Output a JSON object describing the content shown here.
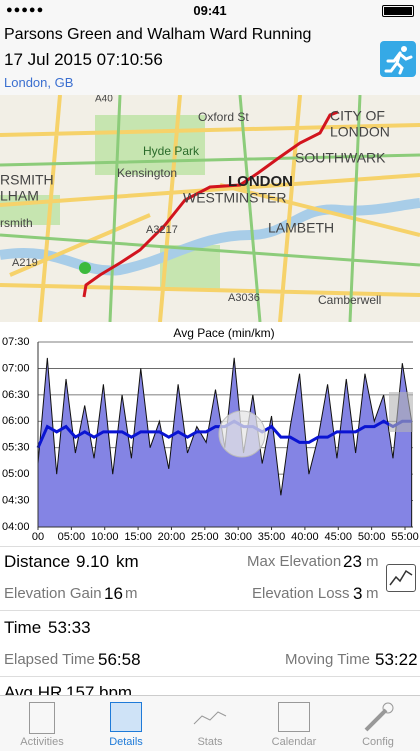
{
  "status_bar": {
    "time": "09:41"
  },
  "header": {
    "title": "Parsons Green and Walham Ward Running",
    "date": "17 Jul 2015 07:10:56",
    "location": "London, GB"
  },
  "map": {
    "labels": [
      "A40",
      "Oxford St",
      "CITY OF",
      "LONDON",
      "Hyde Park",
      "SOUTHWARK",
      "Kensington",
      "LONDON",
      "WESTMINSTER",
      "RSMITH",
      "LHAM",
      "rsmith",
      "A3217",
      "LAMBETH",
      "A219",
      "A3036",
      "Camberwell"
    ]
  },
  "chart_data": {
    "type": "area",
    "title": "Avg Pace (min/km)",
    "x": [
      0,
      1.4,
      2.8,
      4.2,
      5.6,
      7,
      8.4,
      9.8,
      11.2,
      12.6,
      14,
      15.4,
      16.8,
      18.2,
      19.6,
      21,
      22.4,
      23.8,
      25.2,
      26.6,
      28,
      29.4,
      30.8,
      32.2,
      33.6,
      35,
      36.4,
      37.8,
      39.2,
      40.6,
      42,
      43.4,
      44.8,
      46.2,
      47.6,
      49,
      50.4,
      51.8,
      53.2,
      54.6,
      56
    ],
    "series": [
      {
        "color": "#8484e4",
        "values": [
          5.2,
          7.2,
          5.0,
          6.8,
          5.4,
          6.3,
          5.3,
          6.7,
          5.0,
          6.5,
          5.3,
          7.0,
          5.5,
          6.0,
          5.1,
          6.7,
          5.4,
          5.9,
          5.6,
          6.6,
          5.5,
          7.2,
          5.4,
          6.5,
          5.2,
          6.1,
          4.6,
          5.9,
          6.9,
          5.0,
          5.7,
          6.7,
          5.3,
          6.8,
          5.4,
          6.9,
          6.0,
          6.5,
          5.3,
          7.1,
          6.0
        ]
      },
      {
        "color": "#0a14d2",
        "values": [
          5.5,
          5.9,
          5.8,
          5.9,
          5.7,
          5.8,
          5.7,
          5.8,
          5.8,
          5.8,
          5.7,
          5.8,
          5.8,
          5.8,
          5.7,
          5.8,
          5.7,
          5.8,
          5.8,
          5.9,
          5.9,
          6.0,
          5.9,
          5.9,
          5.8,
          5.9,
          5.7,
          5.7,
          5.6,
          5.6,
          5.7,
          5.7,
          5.8,
          5.8,
          5.8,
          5.9,
          5.9,
          6.0,
          5.9,
          6.0,
          6.0
        ]
      }
    ],
    "xlim": [
      0,
      56.2
    ],
    "ylim": [
      4,
      7.5
    ],
    "xticks": [
      {
        "value": 0,
        "label": "00"
      },
      {
        "value": 5,
        "label": "05:00"
      },
      {
        "value": 10,
        "label": "10:00"
      },
      {
        "value": 15,
        "label": "15:00"
      },
      {
        "value": 20,
        "label": "20:00"
      },
      {
        "value": 25,
        "label": "25:00"
      },
      {
        "value": 30,
        "label": "30:00"
      },
      {
        "value": 35,
        "label": "35:00"
      },
      {
        "value": 40,
        "label": "40:00"
      },
      {
        "value": 45,
        "label": "45:00"
      },
      {
        "value": 50,
        "label": "50:00"
      },
      {
        "value": 55,
        "label": "55:00"
      }
    ],
    "yticks": [
      {
        "value": 4,
        "label": "04:00"
      },
      {
        "value": 4.5,
        "label": "04:30"
      },
      {
        "value": 5,
        "label": "05:00"
      },
      {
        "value": 5.5,
        "label": "05:30"
      },
      {
        "value": 6,
        "label": "06:00"
      },
      {
        "value": 6.5,
        "label": "06:30"
      },
      {
        "value": 7,
        "label": "07:00"
      },
      {
        "value": 7.5,
        "label": "07:30"
      }
    ],
    "grid": true
  },
  "stats": {
    "distance": {
      "label": "Distance",
      "value": "9.10",
      "unit": "km"
    },
    "max_elevation": {
      "label": "Max Elevation",
      "value": "23",
      "unit": "m"
    },
    "elevation_gain": {
      "label": "Elevation Gain",
      "value": "16",
      "unit": "m"
    },
    "elevation_loss": {
      "label": "Elevation Loss",
      "value": "3",
      "unit": "m"
    },
    "time": {
      "label": "Time",
      "value": "53:33"
    },
    "elapsed_time": {
      "label": "Elapsed Time",
      "value": "56:58"
    },
    "moving_time": {
      "label": "Moving Time",
      "value": "53:22"
    },
    "avg_hr": {
      "label": "Avg HR",
      "value": "157",
      "unit": "bpm"
    }
  },
  "tabs": [
    "Activities",
    "Details",
    "Stats",
    "Calendar",
    "Config"
  ]
}
